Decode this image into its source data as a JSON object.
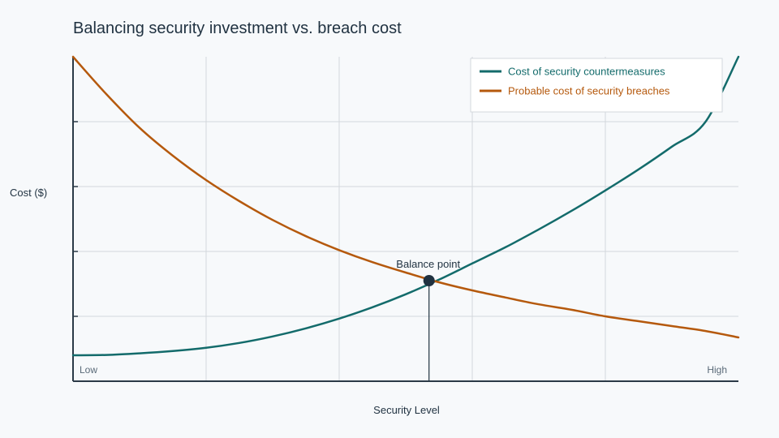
{
  "chart_data": {
    "type": "line",
    "title": "Balancing security investment vs. breach cost",
    "xlabel": "Security Level",
    "ylabel": "Cost ($)",
    "x_tick_labels": [
      "Low",
      "High"
    ],
    "xlim": [
      0,
      1
    ],
    "ylim": [
      0,
      1
    ],
    "grid": true,
    "legend_position": "top-right",
    "x": [
      0,
      0.05,
      0.1,
      0.15,
      0.2,
      0.25,
      0.3,
      0.35,
      0.4,
      0.45,
      0.5,
      0.55,
      0.6,
      0.65,
      0.7,
      0.75,
      0.8,
      0.85,
      0.9,
      0.95,
      1.0
    ],
    "series": [
      {
        "name": "Cost of security countermeasures",
        "color": "#136b6b",
        "values": [
          0.08,
          0.081,
          0.086,
          0.093,
          0.103,
          0.118,
          0.138,
          0.163,
          0.193,
          0.228,
          0.268,
          0.313,
          0.363,
          0.413,
          0.468,
          0.526,
          0.588,
          0.653,
          0.723,
          0.798,
          1.0
        ]
      },
      {
        "name": "Probable cost of security breaches",
        "color": "#b5590d",
        "values": [
          1.0,
          0.885,
          0.781,
          0.695,
          0.62,
          0.555,
          0.497,
          0.447,
          0.404,
          0.367,
          0.335,
          0.305,
          0.28,
          0.258,
          0.237,
          0.22,
          0.2,
          0.185,
          0.17,
          0.155,
          0.135
        ]
      }
    ],
    "annotations": [
      {
        "text": "Balance point",
        "x": 0.535,
        "y": 0.31
      }
    ]
  }
}
